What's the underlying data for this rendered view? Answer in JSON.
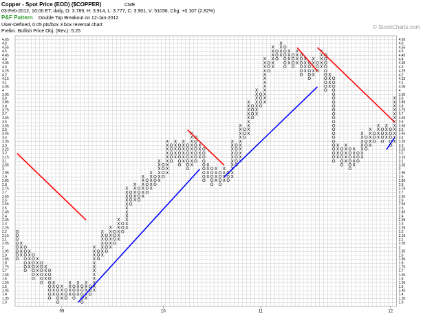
{
  "chart_data": {
    "type": "pnf",
    "title": "Copper - Spot Price (EOD) ($COPPER)",
    "exchange": "CME",
    "subtitle": "03-Feb-2012, 16:00 ET, daily, O: 3.789, H: 3.914, L: 3.777, C: 3.901, V: 51036, Chg: +0.107 (2.82%)",
    "pattern_label": "P&F Pattern",
    "pattern": "Double Top Breakout on 12-Jan-2012",
    "notes": [
      "User-Defined, 0.05 pts/box 3 box reversal chart",
      "Prelim. Bullish Price Obj. (Rev.): 5.25"
    ],
    "credit": "© StockCharts.com",
    "box_size": 0.05,
    "ylim": [
      1.25,
      4.7
    ],
    "yticks": [
      1.3,
      1.35,
      1.4,
      1.45,
      1.5,
      1.55,
      1.6,
      1.65,
      1.7,
      1.75,
      1.8,
      1.85,
      1.9,
      1.95,
      2,
      2.05,
      2.1,
      2.15,
      2.2,
      2.25,
      2.3,
      2.35,
      2.4,
      2.45,
      2.5,
      2.55,
      2.6,
      2.65,
      2.7,
      2.75,
      2.8,
      2.85,
      2.9,
      2.95,
      3,
      3.05,
      3.1,
      3.15,
      3.2,
      3.25,
      3.3,
      3.35,
      3.4,
      3.45,
      3.5,
      3.55,
      3.6,
      3.65,
      3.7,
      3.75,
      3.8,
      3.85,
      3.9,
      3.95,
      4,
      4.05,
      4.1,
      4.15,
      4.2,
      4.25,
      4.3,
      4.35,
      4.4,
      4.45,
      4.5,
      4.55,
      4.6,
      4.65
    ],
    "grid": true,
    "box_color": "#000000",
    "year_marks": [
      {
        "label": "09",
        "column": 11
      },
      {
        "label": "10",
        "column": 36
      },
      {
        "label": "11",
        "column": 60
      },
      {
        "label": "12",
        "column": 92
      }
    ],
    "columns": [
      {
        "type": "O",
        "low": 1.85,
        "high": 2.2
      },
      {
        "type": "X",
        "low": 1.9,
        "high": 2.05
      },
      {
        "type": "O",
        "low": 1.7,
        "high": 2
      },
      {
        "type": "X",
        "low": 1.75,
        "high": 1.95
      },
      {
        "type": "O",
        "low": 1.6,
        "high": 1.9
      },
      {
        "type": "X",
        "low": 1.65,
        "high": 1.85
      },
      {
        "type": "O",
        "low": 1.55,
        "high": 1.8
      },
      {
        "type": "X",
        "low": 1.6,
        "high": 1.75
      },
      {
        "type": "O",
        "low": 1.35,
        "high": 1.7
      },
      {
        "type": "X",
        "low": 1.4,
        "high": 1.55
      },
      {
        "type": "O",
        "low": 1.3,
        "high": 1.5
      },
      {
        "type": "X",
        "low": 1.35,
        "high": 1.5
      },
      {
        "type": "O",
        "low": 1.35,
        "high": 1.45
      },
      {
        "type": "X",
        "low": 1.4,
        "high": 1.55
      },
      {
        "type": "O",
        "low": 1.35,
        "high": 1.5
      },
      {
        "type": "X",
        "low": 1.4,
        "high": 1.55
      },
      {
        "type": "O",
        "low": 1.3,
        "high": 1.5
      },
      {
        "type": "X",
        "low": 1.35,
        "high": 1.55
      },
      {
        "type": "O",
        "low": 1.4,
        "high": 1.5
      },
      {
        "type": "X",
        "low": 1.45,
        "high": 2
      },
      {
        "type": "O",
        "low": 1.85,
        "high": 1.95
      },
      {
        "type": "X",
        "low": 1.9,
        "high": 2.2
      },
      {
        "type": "O",
        "low": 1.95,
        "high": 2.15
      },
      {
        "type": "X",
        "low": 2,
        "high": 2.25
      },
      {
        "type": "O",
        "low": 2.05,
        "high": 2.2
      },
      {
        "type": "X",
        "low": 2.1,
        "high": 2.35
      },
      {
        "type": "O",
        "low": 2.2,
        "high": 2.3
      },
      {
        "type": "X",
        "low": 2.25,
        "high": 2.75
      },
      {
        "type": "O",
        "low": 2.55,
        "high": 2.7
      },
      {
        "type": "X",
        "low": 2.6,
        "high": 2.8
      },
      {
        "type": "O",
        "low": 2.6,
        "high": 2.75
      },
      {
        "type": "X",
        "low": 2.65,
        "high": 2.9
      },
      {
        "type": "O",
        "low": 2.7,
        "high": 2.85
      },
      {
        "type": "X",
        "low": 2.75,
        "high": 2.95
      },
      {
        "type": "O",
        "low": 2.8,
        "high": 2.9
      },
      {
        "type": "X",
        "low": 2.85,
        "high": 3.1
      },
      {
        "type": "O",
        "low": 2.9,
        "high": 3.05
      },
      {
        "type": "X",
        "low": 2.95,
        "high": 3.35
      },
      {
        "type": "O",
        "low": 3.1,
        "high": 3.3
      },
      {
        "type": "X",
        "low": 3.15,
        "high": 3.35
      },
      {
        "type": "O",
        "low": 3.05,
        "high": 3.3
      },
      {
        "type": "X",
        "low": 3.1,
        "high": 3.35
      },
      {
        "type": "O",
        "low": 3,
        "high": 3.3
      },
      {
        "type": "X",
        "low": 3.05,
        "high": 3.45
      },
      {
        "type": "O",
        "low": 3.1,
        "high": 3.4
      },
      {
        "type": "X",
        "low": 3.15,
        "high": 3.3
      },
      {
        "type": "O",
        "low": 2.85,
        "high": 3.25
      },
      {
        "type": "X",
        "low": 2.9,
        "high": 3.05
      },
      {
        "type": "O",
        "low": 2.8,
        "high": 3
      },
      {
        "type": "X",
        "low": 2.85,
        "high": 3
      },
      {
        "type": "O",
        "low": 2.8,
        "high": 2.95
      },
      {
        "type": "X",
        "low": 2.85,
        "high": 3
      },
      {
        "type": "O",
        "low": 2.85,
        "high": 2.95
      },
      {
        "type": "X",
        "low": 2.9,
        "high": 3.35
      },
      {
        "type": "O",
        "low": 3.05,
        "high": 3.3
      },
      {
        "type": "X",
        "low": 3.1,
        "high": 3.55
      },
      {
        "type": "O",
        "low": 3.4,
        "high": 3.5
      },
      {
        "type": "X",
        "low": 3.45,
        "high": 3.85
      },
      {
        "type": "O",
        "low": 3.65,
        "high": 3.8
      },
      {
        "type": "X",
        "low": 3.7,
        "high": 4
      },
      {
        "type": "O",
        "low": 3.8,
        "high": 3.95
      },
      {
        "type": "X",
        "low": 3.85,
        "high": 4.4
      },
      {
        "type": "O",
        "low": 4.25,
        "high": 4.35
      },
      {
        "type": "X",
        "low": 4.3,
        "high": 4.55
      },
      {
        "type": "O",
        "low": 4.4,
        "high": 4.5
      },
      {
        "type": "X",
        "low": 4.45,
        "high": 4.6
      },
      {
        "type": "O",
        "low": 4.3,
        "high": 4.55
      },
      {
        "type": "X",
        "low": 4.35,
        "high": 4.5
      },
      {
        "type": "O",
        "low": 4.3,
        "high": 4.45
      },
      {
        "type": "X",
        "low": 4.35,
        "high": 4.5
      },
      {
        "type": "O",
        "low": 4.2,
        "high": 4.45
      },
      {
        "type": "X",
        "low": 4.25,
        "high": 4.4
      },
      {
        "type": "O",
        "low": 4.15,
        "high": 4.35
      },
      {
        "type": "X",
        "low": 4.2,
        "high": 4.4
      },
      {
        "type": "O",
        "low": 4.25,
        "high": 4.35
      },
      {
        "type": "X",
        "low": 4.3,
        "high": 4.5
      },
      {
        "type": "O",
        "low": 4,
        "high": 4.45
      },
      {
        "type": "X",
        "low": 4.05,
        "high": 4.2
      },
      {
        "type": "O",
        "low": 3.1,
        "high": 4.15
      },
      {
        "type": "X",
        "low": 3.15,
        "high": 3.3
      },
      {
        "type": "O",
        "low": 3.05,
        "high": 3.25
      },
      {
        "type": "X",
        "low": 3.1,
        "high": 3.3
      },
      {
        "type": "O",
        "low": 3,
        "high": 3.25
      },
      {
        "type": "X",
        "low": 3.05,
        "high": 3.25
      },
      {
        "type": "O",
        "low": 3.1,
        "high": 3.2
      },
      {
        "type": "X",
        "low": 3.15,
        "high": 3.45
      },
      {
        "type": "O",
        "low": 3.25,
        "high": 3.4
      },
      {
        "type": "X",
        "low": 3.3,
        "high": 3.5
      },
      {
        "type": "O",
        "low": 3.35,
        "high": 3.45
      },
      {
        "type": "X",
        "low": 3.4,
        "high": 3.55
      },
      {
        "type": "O",
        "low": 3.35,
        "high": 3.5
      },
      {
        "type": "X",
        "low": 3.4,
        "high": 3.55
      },
      {
        "type": "O",
        "low": 3.3,
        "high": 3.5
      },
      {
        "type": "X",
        "low": 3.35,
        "high": 3.9
      }
    ],
    "trendlines": [
      {
        "color": "#ff0000",
        "start": [
          0,
          3.2
        ],
        "end": [
          17,
          2.35
        ]
      },
      {
        "color": "#0000ff",
        "start": [
          15,
          1.3
        ],
        "end": [
          45,
          3
        ]
      },
      {
        "color": "#ff0000",
        "start": [
          42,
          3.5
        ],
        "end": [
          51,
          3.05
        ]
      },
      {
        "color": "#0000ff",
        "start": [
          51,
          2.9
        ],
        "end": [
          74,
          4.05
        ]
      },
      {
        "color": "#ff0000",
        "start": [
          69,
          4.55
        ],
        "end": [
          74,
          4.25
        ]
      },
      {
        "color": "#ff0000",
        "start": [
          74,
          4.55
        ],
        "end": [
          93,
          3.6
        ]
      },
      {
        "color": "#0000ff",
        "start": [
          91,
          3.25
        ],
        "end": [
          93,
          3.4
        ]
      }
    ]
  }
}
